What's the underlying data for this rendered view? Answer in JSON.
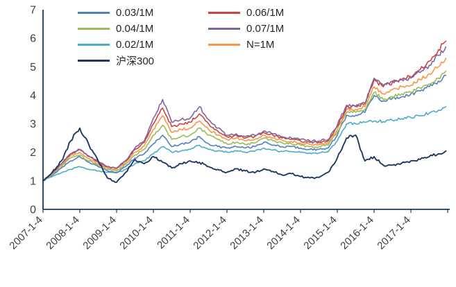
{
  "chart": {
    "title": "",
    "axis_color": "#17375E",
    "tick_label_color": "#3f3f3f"
  },
  "chart_data": {
    "type": "line",
    "title": "",
    "xlabel": "",
    "ylabel": "",
    "ylim": [
      0,
      7
    ],
    "xlim": [
      2007.0,
      2018.05
    ],
    "grid": false,
    "legend_position": "top-inside",
    "y_ticks": [
      0,
      1,
      2,
      3,
      4,
      5,
      6,
      7
    ],
    "x_tick_labels": [
      "2007-1-4",
      "2008-1-4",
      "2009-1-4",
      "2010-1-4",
      "2011-1-4",
      "2012-1-4",
      "2013-1-4",
      "2014-1-4",
      "2015-1-4",
      "2016-1-4",
      "2017-1-4"
    ],
    "x": [
      2007.0,
      2007.25,
      2007.5,
      2007.75,
      2008.0,
      2008.25,
      2008.5,
      2008.75,
      2009.0,
      2009.25,
      2009.5,
      2009.75,
      2010.0,
      2010.25,
      2010.5,
      2010.75,
      2011.0,
      2011.25,
      2011.5,
      2011.75,
      2012.0,
      2012.25,
      2012.5,
      2012.75,
      2013.0,
      2013.25,
      2013.5,
      2013.75,
      2014.0,
      2014.25,
      2014.5,
      2014.75,
      2015.0,
      2015.25,
      2015.5,
      2015.75,
      2016.0,
      2016.25,
      2016.5,
      2016.75,
      2017.0,
      2017.25,
      2017.5,
      2017.75,
      2017.95
    ],
    "series": [
      {
        "name": "0.03/1M",
        "color": "#4F81BD",
        "values": [
          1.0,
          1.2,
          1.45,
          1.7,
          1.85,
          1.65,
          1.5,
          1.35,
          1.3,
          1.5,
          1.8,
          1.95,
          2.3,
          2.6,
          2.2,
          2.3,
          2.35,
          2.55,
          2.3,
          2.2,
          2.15,
          2.2,
          2.15,
          2.2,
          2.35,
          2.25,
          2.2,
          2.2,
          2.15,
          2.1,
          2.1,
          2.15,
          2.6,
          3.3,
          3.3,
          3.4,
          4.0,
          3.8,
          3.9,
          3.95,
          4.05,
          4.15,
          4.3,
          4.5,
          4.7
        ]
      },
      {
        "name": "0.06/1M",
        "color": "#D0423A",
        "values": [
          1.0,
          1.27,
          1.6,
          1.95,
          2.1,
          1.85,
          1.65,
          1.5,
          1.45,
          1.7,
          2.1,
          2.35,
          3.0,
          3.55,
          2.9,
          3.0,
          3.05,
          3.35,
          3.0,
          2.75,
          2.55,
          2.6,
          2.5,
          2.55,
          2.7,
          2.6,
          2.5,
          2.45,
          2.4,
          2.35,
          2.35,
          2.4,
          2.9,
          3.6,
          3.6,
          3.7,
          4.55,
          4.3,
          4.45,
          4.55,
          4.65,
          4.9,
          5.2,
          5.6,
          5.9
        ]
      },
      {
        "name": "0.04/1M",
        "color": "#9BBB59",
        "values": [
          1.0,
          1.22,
          1.5,
          1.8,
          1.9,
          1.7,
          1.55,
          1.4,
          1.35,
          1.58,
          1.9,
          2.1,
          2.6,
          2.95,
          2.45,
          2.55,
          2.6,
          2.85,
          2.6,
          2.45,
          2.3,
          2.35,
          2.28,
          2.33,
          2.5,
          2.4,
          2.33,
          2.3,
          2.25,
          2.2,
          2.2,
          2.25,
          2.7,
          3.4,
          3.4,
          3.5,
          4.1,
          3.85,
          3.95,
          4.05,
          4.1,
          4.25,
          4.4,
          4.6,
          4.85
        ]
      },
      {
        "name": "0.07/1M",
        "color": "#8064A2",
        "values": [
          1.0,
          1.27,
          1.6,
          1.95,
          2.1,
          1.87,
          1.68,
          1.5,
          1.45,
          1.72,
          2.15,
          2.4,
          3.2,
          3.85,
          3.05,
          3.15,
          3.2,
          3.6,
          3.15,
          2.85,
          2.6,
          2.65,
          2.55,
          2.6,
          2.75,
          2.65,
          2.55,
          2.5,
          2.45,
          2.4,
          2.4,
          2.45,
          2.95,
          3.65,
          3.62,
          3.72,
          4.6,
          4.35,
          4.5,
          4.55,
          4.6,
          4.8,
          5.05,
          5.4,
          5.7
        ]
      },
      {
        "name": "0.02/1M",
        "color": "#4BACC6",
        "values": [
          1.0,
          1.15,
          1.28,
          1.4,
          1.5,
          1.4,
          1.35,
          1.3,
          1.28,
          1.4,
          1.6,
          1.7,
          1.95,
          2.2,
          2.0,
          2.05,
          2.1,
          2.25,
          2.1,
          2.05,
          2.0,
          2.05,
          2.0,
          2.03,
          2.15,
          2.08,
          2.03,
          2.03,
          2.0,
          1.98,
          1.98,
          2.02,
          2.4,
          3.0,
          3.0,
          3.05,
          3.1,
          3.08,
          3.12,
          3.18,
          3.22,
          3.28,
          3.38,
          3.48,
          3.6
        ]
      },
      {
        "name": "N=1M",
        "color": "#F79646",
        "values": [
          1.0,
          1.25,
          1.55,
          1.88,
          2.0,
          1.78,
          1.6,
          1.45,
          1.4,
          1.65,
          2.0,
          2.22,
          2.8,
          3.28,
          2.7,
          2.8,
          2.85,
          3.1,
          2.8,
          2.6,
          2.45,
          2.5,
          2.4,
          2.45,
          2.6,
          2.5,
          2.42,
          2.38,
          2.32,
          2.28,
          2.28,
          2.33,
          2.8,
          3.5,
          3.5,
          3.6,
          4.3,
          4.05,
          4.2,
          4.3,
          4.35,
          4.55,
          4.75,
          5.0,
          5.3
        ]
      },
      {
        "name": "沪深300",
        "color": "#1F3864",
        "values": [
          1.0,
          1.3,
          1.7,
          2.4,
          2.85,
          2.25,
          1.7,
          1.1,
          0.95,
          1.3,
          1.75,
          1.6,
          1.85,
          1.65,
          1.45,
          1.6,
          1.7,
          1.65,
          1.5,
          1.4,
          1.3,
          1.42,
          1.35,
          1.28,
          1.42,
          1.33,
          1.2,
          1.25,
          1.15,
          1.1,
          1.12,
          1.3,
          1.8,
          2.5,
          2.6,
          1.7,
          1.85,
          1.55,
          1.55,
          1.62,
          1.7,
          1.75,
          1.85,
          1.95,
          2.05
        ]
      }
    ]
  }
}
